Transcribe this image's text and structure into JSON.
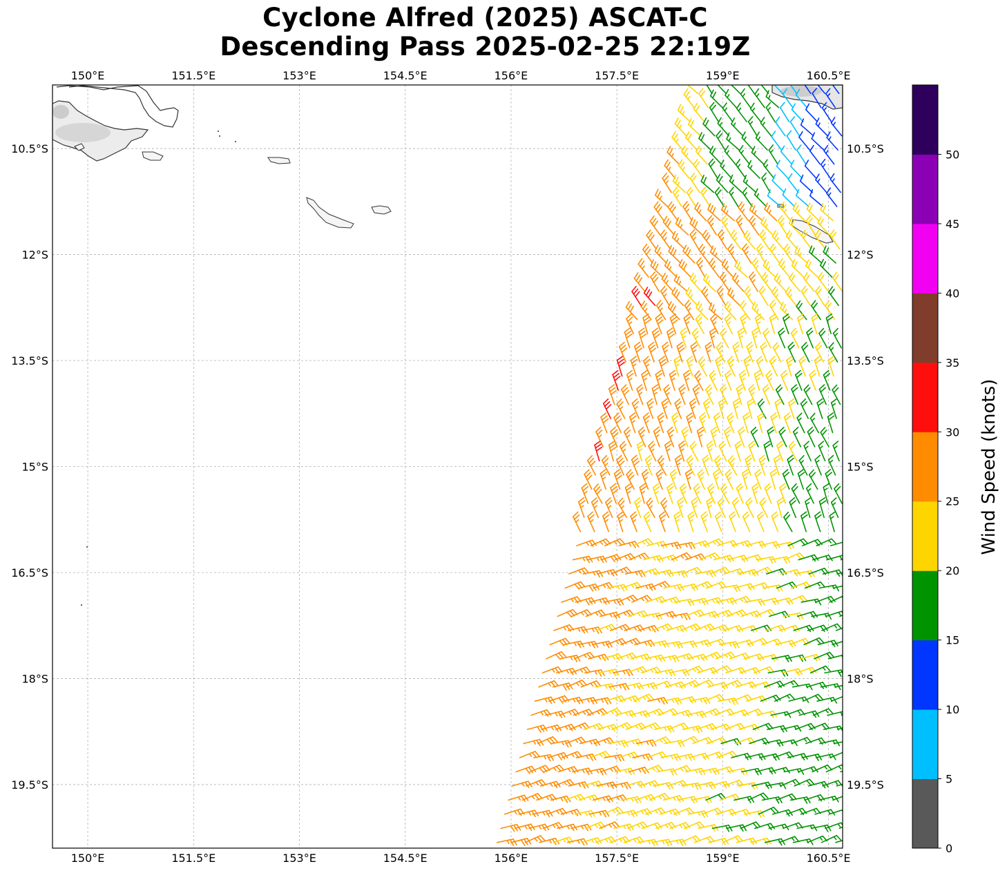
{
  "title": {
    "line1": "Cyclone Alfred (2025) ASCAT-C",
    "line2": "Descending Pass 2025-02-25 22:19Z"
  },
  "map": {
    "lon_range": [
      149.5,
      160.7
    ],
    "lat_range": [
      -20.4,
      -9.6
    ],
    "lon_ticks": [
      {
        "value": 150.0,
        "label": "150°E"
      },
      {
        "value": 151.5,
        "label": "151.5°E"
      },
      {
        "value": 153.0,
        "label": "153°E"
      },
      {
        "value": 154.5,
        "label": "154.5°E"
      },
      {
        "value": 156.0,
        "label": "156°E"
      },
      {
        "value": 157.5,
        "label": "157.5°E"
      },
      {
        "value": 159.0,
        "label": "159°E"
      },
      {
        "value": 160.5,
        "label": "160.5°E"
      }
    ],
    "lat_ticks": [
      {
        "value": -10.5,
        "label": "10.5°S"
      },
      {
        "value": -12.0,
        "label": "12°S"
      },
      {
        "value": -13.5,
        "label": "13.5°S"
      },
      {
        "value": -15.0,
        "label": "15°S"
      },
      {
        "value": -16.5,
        "label": "16.5°S"
      },
      {
        "value": -18.0,
        "label": "18°S"
      },
      {
        "value": -19.5,
        "label": "19.5°S"
      }
    ],
    "gridlines": true,
    "coastline_color": "#333333",
    "swath": {
      "north_lat": -9.6,
      "south_lat": -20.4,
      "west_lon_north": 158.6,
      "west_lon_south": 155.7
    }
  },
  "colorbar": {
    "label": "Wind Speed (knots)",
    "bins": [
      {
        "from": 0,
        "to": 5,
        "color": "#595959"
      },
      {
        "from": 5,
        "to": 10,
        "color": "#00bfff"
      },
      {
        "from": 10,
        "to": 15,
        "color": "#0036ff"
      },
      {
        "from": 15,
        "to": 20,
        "color": "#009300"
      },
      {
        "from": 20,
        "to": 25,
        "color": "#ffd500"
      },
      {
        "from": 25,
        "to": 30,
        "color": "#ff8c00"
      },
      {
        "from": 30,
        "to": 35,
        "color": "#ff0e0e"
      },
      {
        "from": 35,
        "to": 40,
        "color": "#803d2b"
      },
      {
        "from": 40,
        "to": 45,
        "color": "#f200f2"
      },
      {
        "from": 45,
        "to": 50,
        "color": "#8c00b5"
      },
      {
        "from": 50,
        "to": 55,
        "color": "#2e005c"
      }
    ],
    "tick_labels": [
      "0",
      "5",
      "10",
      "15",
      "20",
      "25",
      "30",
      "35",
      "40",
      "45",
      "50"
    ]
  }
}
